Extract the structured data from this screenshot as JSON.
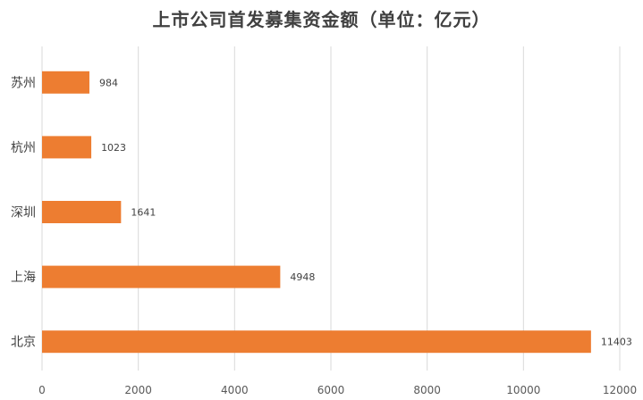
{
  "chart_data": {
    "type": "bar",
    "orientation": "horizontal",
    "title": "上市公司首发募集资金额（单位：亿元）",
    "categories": [
      "苏州",
      "杭州",
      "深圳",
      "上海",
      "北京"
    ],
    "values": [
      984,
      1023,
      1641,
      4948,
      11403
    ],
    "xlim": [
      0,
      12000
    ],
    "xticks": [
      0,
      2000,
      4000,
      6000,
      8000,
      10000,
      12000
    ],
    "grid": "vertical",
    "bar_color": "#ED7D31",
    "data_labels": true,
    "legend": "none"
  },
  "colors": {
    "bar": "#ED7D31",
    "grid": "#D9D9D9",
    "text": "#404040"
  }
}
